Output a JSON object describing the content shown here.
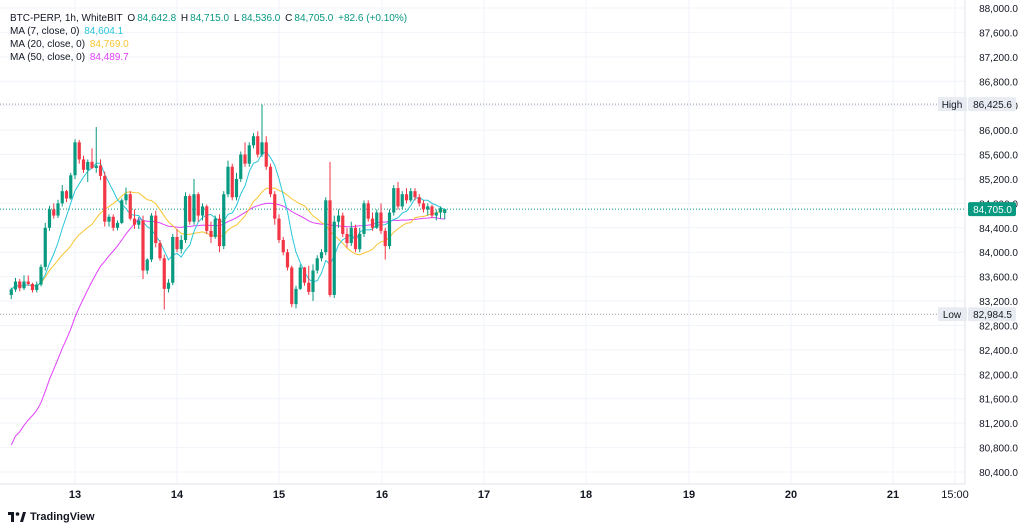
{
  "legend": {
    "symbol": "BTC-PERP, 1h, WhiteBIT",
    "o_label": "O",
    "o_value": "84,642.8",
    "h_label": "H",
    "h_value": "84,715.0",
    "l_label": "L",
    "l_value": "84,536.0",
    "c_label": "C",
    "c_value": "84,705.0",
    "change": "+82.6 (+0.10%)",
    "ma7_label": "MA (7, close, 0)",
    "ma7_value": "84,604.1",
    "ma20_label": "MA (20, close, 0)",
    "ma20_value": "84,769.0",
    "ma50_label": "MA (50, close, 0)",
    "ma50_value": "84,489.7"
  },
  "brand": {
    "name": "TradingView"
  },
  "colors": {
    "up": "#089981",
    "down": "#f23645",
    "ma7": "#26c6da",
    "ma20": "#f7c531",
    "ma50": "#e040fb"
  },
  "chart_data": {
    "type": "candlestick",
    "x_labels": [
      "13",
      "14",
      "15",
      "16",
      "17",
      "18",
      "19",
      "20",
      "21",
      "15:00"
    ],
    "y_ticks": [
      "88,000.0",
      "87,600.0",
      "87,200.0",
      "86,800.0",
      "86,400.0",
      "86,000.0",
      "85,600.0",
      "85,200.0",
      "84,800.0",
      "84,400.0",
      "84,000.0",
      "83,600.0",
      "83,200.0",
      "82,800.0",
      "82,400.0",
      "82,000.0",
      "81,600.0",
      "81,200.0",
      "80,800.0",
      "80,400.0"
    ],
    "ylim": [
      80200,
      88000
    ],
    "x_days": [
      13,
      14,
      15,
      16,
      17,
      18,
      19,
      20,
      21
    ],
    "last_label": "15:00",
    "high_label": "High",
    "high_value": "86,425.6",
    "high": 86425.6,
    "low_label": "Low",
    "low_value": "82,984.5",
    "low": 82984.5,
    "last_price": "84,705.0",
    "last": 84705.0,
    "candles_start": "12 09:00",
    "candles": [
      [
        83300,
        83420,
        83230,
        83390
      ],
      [
        83390,
        83580,
        83350,
        83520
      ],
      [
        83520,
        83560,
        83360,
        83410
      ],
      [
        83410,
        83620,
        83380,
        83520
      ],
      [
        83520,
        83620,
        83450,
        83480
      ],
      [
        83480,
        83500,
        83340,
        83380
      ],
      [
        83380,
        83520,
        83340,
        83470
      ],
      [
        83470,
        83800,
        83440,
        83760
      ],
      [
        83760,
        84480,
        83700,
        84400
      ],
      [
        84400,
        84760,
        84350,
        84700
      ],
      [
        84700,
        84800,
        84550,
        84600
      ],
      [
        84600,
        84860,
        84560,
        84800
      ],
      [
        84800,
        85100,
        84750,
        85000
      ],
      [
        85000,
        85020,
        84820,
        84880
      ],
      [
        84880,
        85300,
        84860,
        85260
      ],
      [
        85260,
        85850,
        85200,
        85800
      ],
      [
        85800,
        85840,
        85450,
        85520
      ],
      [
        85520,
        85580,
        85300,
        85350
      ],
      [
        85350,
        85520,
        85150,
        85480
      ],
      [
        85480,
        85700,
        85360,
        85380
      ],
      [
        85380,
        86050,
        85300,
        85420
      ],
      [
        85420,
        85520,
        85180,
        85250
      ],
      [
        85250,
        85320,
        84420,
        84500
      ],
      [
        84500,
        84620,
        84420,
        84580
      ],
      [
        84580,
        84620,
        84350,
        84400
      ],
      [
        84400,
        84520,
        84360,
        84480
      ],
      [
        84480,
        84880,
        84460,
        84850
      ],
      [
        84850,
        85060,
        84780,
        84950
      ],
      [
        84950,
        85000,
        84520,
        84550
      ],
      [
        84550,
        84700,
        84380,
        84450
      ],
      [
        84450,
        84580,
        84380,
        84520
      ],
      [
        84520,
        84600,
        83560,
        83700
      ],
      [
        83700,
        83900,
        83640,
        83880
      ],
      [
        83880,
        84640,
        83840,
        84600
      ],
      [
        84600,
        84680,
        84080,
        84150
      ],
      [
        84150,
        84200,
        83860,
        83900
      ],
      [
        83900,
        83960,
        83060,
        83400
      ],
      [
        83400,
        83560,
        83340,
        83500
      ],
      [
        83500,
        84300,
        83460,
        84250
      ],
      [
        84250,
        84380,
        84000,
        84050
      ],
      [
        84050,
        84280,
        83980,
        84200
      ],
      [
        84200,
        84980,
        84150,
        84920
      ],
      [
        84920,
        84950,
        84450,
        84500
      ],
      [
        84500,
        85200,
        84450,
        84950
      ],
      [
        84950,
        84980,
        84500,
        84600
      ],
      [
        84600,
        84800,
        84520,
        84750
      ],
      [
        84750,
        84780,
        84300,
        84350
      ],
      [
        84350,
        84500,
        84150,
        84250
      ],
      [
        84250,
        84600,
        84220,
        84550
      ],
      [
        84550,
        84620,
        84000,
        84100
      ],
      [
        84100,
        85000,
        84050,
        84950
      ],
      [
        84950,
        85500,
        84900,
        85400
      ],
      [
        85400,
        85450,
        84850,
        84900
      ],
      [
        84900,
        85300,
        84850,
        85200
      ],
      [
        85200,
        85650,
        85150,
        85600
      ],
      [
        85600,
        85800,
        85400,
        85450
      ],
      [
        85450,
        85800,
        85400,
        85750
      ],
      [
        85750,
        85950,
        85700,
        85900
      ],
      [
        85900,
        85980,
        85550,
        85600
      ],
      [
        85600,
        86420,
        85560,
        85800
      ],
      [
        85800,
        85900,
        85350,
        85400
      ],
      [
        85400,
        85450,
        84900,
        84950
      ],
      [
        84950,
        85000,
        84450,
        84550
      ],
      [
        84550,
        84620,
        84150,
        84200
      ],
      [
        84200,
        84250,
        83950,
        84000
      ],
      [
        84000,
        84050,
        83700,
        83750
      ],
      [
        83750,
        83780,
        83100,
        83150
      ],
      [
        83150,
        83450,
        83080,
        83400
      ],
      [
        83400,
        83800,
        83380,
        83750
      ],
      [
        83750,
        83760,
        83450,
        83500
      ],
      [
        83500,
        83780,
        83300,
        83350
      ],
      [
        83350,
        83800,
        83200,
        83700
      ],
      [
        83700,
        83950,
        83650,
        83900
      ],
      [
        83900,
        84050,
        83850,
        84000
      ],
      [
        84000,
        84900,
        83950,
        84850
      ],
      [
        84850,
        85480,
        83270,
        83300
      ],
      [
        83300,
        84600,
        83250,
        84500
      ],
      [
        84500,
        84700,
        84400,
        84600
      ],
      [
        84600,
        84650,
        84250,
        84300
      ],
      [
        84300,
        84400,
        84080,
        84150
      ],
      [
        84150,
        84500,
        84100,
        84400
      ],
      [
        84400,
        84450,
        84000,
        84050
      ],
      [
        84050,
        84400,
        84000,
        84300
      ],
      [
        84300,
        84850,
        84250,
        84800
      ],
      [
        84800,
        84850,
        84500,
        84550
      ],
      [
        84550,
        84650,
        84350,
        84400
      ],
      [
        84400,
        84700,
        84380,
        84650
      ],
      [
        84650,
        84800,
        84300,
        84350
      ],
      [
        84350,
        84400,
        83880,
        84100
      ],
      [
        84100,
        84700,
        84050,
        84650
      ],
      [
        84650,
        85100,
        84600,
        85050
      ],
      [
        85050,
        85150,
        84700,
        84750
      ],
      [
        84750,
        85000,
        84700,
        84950
      ],
      [
        84950,
        85050,
        84800,
        84850
      ],
      [
        84850,
        85050,
        84820,
        85000
      ],
      [
        85000,
        85050,
        84850,
        84900
      ],
      [
        84900,
        84950,
        84750,
        84800
      ],
      [
        84800,
        84850,
        84650,
        84700
      ],
      [
        84700,
        84800,
        84600,
        84750
      ],
      [
        84750,
        84780,
        84560,
        84600
      ],
      [
        84600,
        84700,
        84520,
        84650
      ],
      [
        84650,
        84750,
        84550,
        84720
      ],
      [
        84643,
        84715,
        84536,
        84705
      ]
    ],
    "series": [
      {
        "name": "MA (7, close, 0)"
      },
      {
        "name": "MA (20, close, 0)"
      },
      {
        "name": "MA (50, close, 0)"
      }
    ],
    "grid": true
  }
}
